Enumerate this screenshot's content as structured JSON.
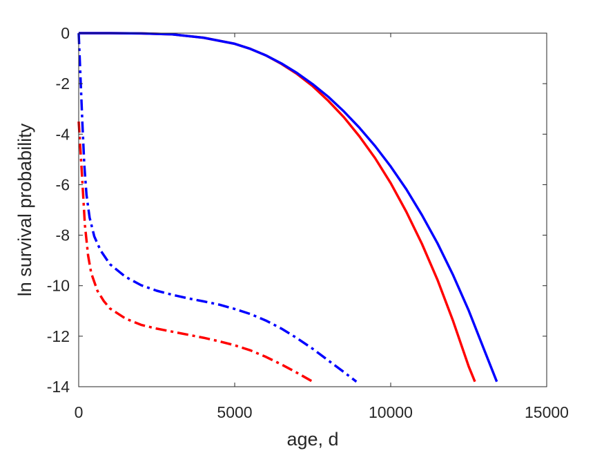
{
  "chart_data": {
    "type": "line",
    "title": "",
    "xlabel": "age, d",
    "ylabel": "ln survival probability",
    "xlim": [
      0,
      15000
    ],
    "ylim": [
      -14,
      0
    ],
    "xticks": [
      0,
      5000,
      10000,
      15000
    ],
    "yticks": [
      0,
      -2,
      -4,
      -6,
      -8,
      -10,
      -12,
      -14
    ],
    "grid": false,
    "legend": "none",
    "series": [
      {
        "color": "#ff0000",
        "style": "solid",
        "x": [
          0,
          1000,
          2000,
          3000,
          4000,
          5000,
          5500,
          6000,
          6500,
          7000,
          7500,
          8000,
          8500,
          9000,
          9500,
          10000,
          10500,
          11000,
          11500,
          12000,
          12500,
          12700
        ],
        "y": [
          0,
          0,
          -0.01,
          -0.05,
          -0.18,
          -0.42,
          -0.62,
          -0.88,
          -1.22,
          -1.62,
          -2.1,
          -2.68,
          -3.33,
          -4.09,
          -4.95,
          -5.94,
          -7.07,
          -8.34,
          -9.77,
          -11.4,
          -13.2,
          -13.8
        ]
      },
      {
        "color": "#0000ff",
        "style": "solid",
        "x": [
          0,
          1000,
          2000,
          3000,
          4000,
          5000,
          5500,
          6000,
          6500,
          7000,
          7500,
          8000,
          8500,
          9000,
          9500,
          10000,
          10500,
          11000,
          11500,
          12000,
          12500,
          13000,
          13400
        ],
        "y": [
          0,
          0,
          -0.01,
          -0.05,
          -0.18,
          -0.42,
          -0.62,
          -0.88,
          -1.2,
          -1.58,
          -2.02,
          -2.52,
          -3.1,
          -3.75,
          -4.47,
          -5.28,
          -6.18,
          -7.2,
          -8.32,
          -9.58,
          -10.98,
          -12.55,
          -13.8
        ]
      },
      {
        "color": "#ff0000",
        "style": "dashdot",
        "x": [
          0,
          100,
          200,
          300,
          400,
          600,
          800,
          1000,
          1500,
          2000,
          2500,
          3000,
          3500,
          4000,
          4500,
          5000,
          5500,
          6000,
          6500,
          7000,
          7500
        ],
        "y": [
          -3.5,
          -5.5,
          -7.6,
          -8.8,
          -9.5,
          -10.2,
          -10.6,
          -10.9,
          -11.3,
          -11.55,
          -11.7,
          -11.82,
          -11.94,
          -12.06,
          -12.2,
          -12.36,
          -12.56,
          -12.82,
          -13.12,
          -13.45,
          -13.8
        ]
      },
      {
        "color": "#0000ff",
        "style": "dashdot",
        "x": [
          0,
          60,
          120,
          180,
          250,
          350,
          500,
          700,
          1000,
          1500,
          2000,
          2500,
          3000,
          3500,
          4000,
          4500,
          5000,
          5500,
          6000,
          6500,
          7000,
          7500,
          8000,
          8500,
          8900
        ],
        "y": [
          0,
          -1.8,
          -3.6,
          -5.2,
          -6.4,
          -7.3,
          -8.05,
          -8.6,
          -9.15,
          -9.65,
          -9.98,
          -10.2,
          -10.36,
          -10.5,
          -10.62,
          -10.75,
          -10.92,
          -11.12,
          -11.38,
          -11.7,
          -12.08,
          -12.5,
          -12.96,
          -13.42,
          -13.8
        ]
      }
    ]
  }
}
